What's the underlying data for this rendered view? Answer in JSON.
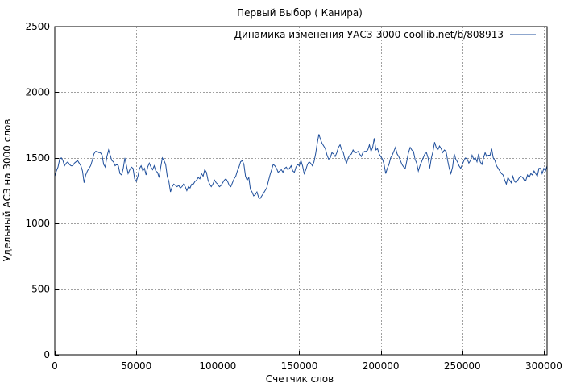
{
  "chart_data": {
    "type": "line",
    "title": "Первый Выбор ( Канира)",
    "xlabel": "Счетчик слов",
    "ylabel": "Удельный АСЗ на 3000 слов",
    "xlim": [
      0,
      302000
    ],
    "ylim": [
      0,
      2500
    ],
    "x_ticks": [
      0,
      50000,
      100000,
      150000,
      200000,
      250000,
      300000
    ],
    "y_ticks": [
      0,
      500,
      1000,
      1500,
      2000,
      2500
    ],
    "grid": true,
    "legend": "top-right",
    "series": [
      {
        "name": "Динамика изменения УАСЗ-3000 coollib.net/b/808913",
        "color": "#1f4f9c",
        "points": [
          [
            0,
            1360
          ],
          [
            1000,
            1400
          ],
          [
            2000,
            1430
          ],
          [
            3000,
            1490
          ],
          [
            4000,
            1500
          ],
          [
            5000,
            1480
          ],
          [
            6000,
            1440
          ],
          [
            7000,
            1460
          ],
          [
            8000,
            1470
          ],
          [
            9000,
            1450
          ],
          [
            10000,
            1440
          ],
          [
            11000,
            1440
          ],
          [
            12000,
            1460
          ],
          [
            13000,
            1470
          ],
          [
            14000,
            1480
          ],
          [
            15000,
            1460
          ],
          [
            16000,
            1440
          ],
          [
            17000,
            1400
          ],
          [
            18000,
            1310
          ],
          [
            19000,
            1370
          ],
          [
            20000,
            1400
          ],
          [
            21000,
            1420
          ],
          [
            22000,
            1440
          ],
          [
            23000,
            1480
          ],
          [
            24000,
            1530
          ],
          [
            25000,
            1550
          ],
          [
            26000,
            1550
          ],
          [
            27000,
            1540
          ],
          [
            28000,
            1540
          ],
          [
            29000,
            1520
          ],
          [
            30000,
            1450
          ],
          [
            31000,
            1430
          ],
          [
            32000,
            1510
          ],
          [
            33000,
            1560
          ],
          [
            34000,
            1520
          ],
          [
            35000,
            1480
          ],
          [
            36000,
            1470
          ],
          [
            37000,
            1440
          ],
          [
            38000,
            1450
          ],
          [
            39000,
            1440
          ],
          [
            40000,
            1380
          ],
          [
            41000,
            1370
          ],
          [
            42000,
            1420
          ],
          [
            43000,
            1500
          ],
          [
            44000,
            1440
          ],
          [
            45000,
            1380
          ],
          [
            46000,
            1410
          ],
          [
            47000,
            1430
          ],
          [
            48000,
            1420
          ],
          [
            49000,
            1340
          ],
          [
            50000,
            1320
          ],
          [
            51000,
            1360
          ],
          [
            52000,
            1420
          ],
          [
            53000,
            1440
          ],
          [
            54000,
            1400
          ],
          [
            55000,
            1420
          ],
          [
            56000,
            1370
          ],
          [
            57000,
            1430
          ],
          [
            58000,
            1460
          ],
          [
            59000,
            1430
          ],
          [
            60000,
            1410
          ],
          [
            61000,
            1440
          ],
          [
            62000,
            1400
          ],
          [
            63000,
            1390
          ],
          [
            64000,
            1350
          ],
          [
            65000,
            1430
          ],
          [
            66000,
            1500
          ],
          [
            67000,
            1480
          ],
          [
            68000,
            1450
          ],
          [
            69000,
            1360
          ],
          [
            70000,
            1320
          ],
          [
            71000,
            1240
          ],
          [
            72000,
            1280
          ],
          [
            73000,
            1300
          ],
          [
            74000,
            1290
          ],
          [
            75000,
            1280
          ],
          [
            76000,
            1290
          ],
          [
            77000,
            1270
          ],
          [
            78000,
            1280
          ],
          [
            79000,
            1300
          ],
          [
            80000,
            1280
          ],
          [
            81000,
            1250
          ],
          [
            82000,
            1280
          ],
          [
            83000,
            1270
          ],
          [
            84000,
            1300
          ],
          [
            85000,
            1300
          ],
          [
            86000,
            1320
          ],
          [
            87000,
            1330
          ],
          [
            88000,
            1350
          ],
          [
            89000,
            1340
          ],
          [
            90000,
            1380
          ],
          [
            91000,
            1360
          ],
          [
            92000,
            1410
          ],
          [
            93000,
            1390
          ],
          [
            94000,
            1330
          ],
          [
            95000,
            1300
          ],
          [
            96000,
            1280
          ],
          [
            97000,
            1300
          ],
          [
            98000,
            1330
          ],
          [
            99000,
            1310
          ],
          [
            100000,
            1300
          ],
          [
            101000,
            1280
          ],
          [
            102000,
            1290
          ],
          [
            103000,
            1310
          ],
          [
            104000,
            1330
          ],
          [
            105000,
            1340
          ],
          [
            106000,
            1320
          ],
          [
            107000,
            1290
          ],
          [
            108000,
            1280
          ],
          [
            109000,
            1310
          ],
          [
            110000,
            1340
          ],
          [
            111000,
            1360
          ],
          [
            112000,
            1400
          ],
          [
            113000,
            1430
          ],
          [
            114000,
            1470
          ],
          [
            115000,
            1480
          ],
          [
            116000,
            1450
          ],
          [
            117000,
            1360
          ],
          [
            118000,
            1330
          ],
          [
            119000,
            1350
          ],
          [
            120000,
            1260
          ],
          [
            121000,
            1240
          ],
          [
            122000,
            1210
          ],
          [
            123000,
            1220
          ],
          [
            124000,
            1240
          ],
          [
            125000,
            1200
          ],
          [
            126000,
            1190
          ],
          [
            127000,
            1210
          ],
          [
            128000,
            1230
          ],
          [
            129000,
            1250
          ],
          [
            130000,
            1270
          ],
          [
            131000,
            1320
          ],
          [
            132000,
            1370
          ],
          [
            133000,
            1410
          ],
          [
            134000,
            1450
          ],
          [
            135000,
            1440
          ],
          [
            136000,
            1420
          ],
          [
            137000,
            1390
          ],
          [
            138000,
            1400
          ],
          [
            139000,
            1410
          ],
          [
            140000,
            1390
          ],
          [
            141000,
            1420
          ],
          [
            142000,
            1430
          ],
          [
            143000,
            1410
          ],
          [
            144000,
            1420
          ],
          [
            145000,
            1440
          ],
          [
            146000,
            1400
          ],
          [
            147000,
            1390
          ],
          [
            148000,
            1430
          ],
          [
            149000,
            1450
          ],
          [
            150000,
            1440
          ],
          [
            151000,
            1480
          ],
          [
            152000,
            1440
          ],
          [
            153000,
            1380
          ],
          [
            154000,
            1410
          ],
          [
            155000,
            1450
          ],
          [
            156000,
            1470
          ],
          [
            157000,
            1460
          ],
          [
            158000,
            1440
          ],
          [
            159000,
            1470
          ],
          [
            160000,
            1530
          ],
          [
            161000,
            1610
          ],
          [
            162000,
            1680
          ],
          [
            163000,
            1640
          ],
          [
            164000,
            1610
          ],
          [
            165000,
            1590
          ],
          [
            166000,
            1570
          ],
          [
            167000,
            1520
          ],
          [
            168000,
            1490
          ],
          [
            169000,
            1500
          ],
          [
            170000,
            1540
          ],
          [
            171000,
            1530
          ],
          [
            172000,
            1510
          ],
          [
            173000,
            1540
          ],
          [
            174000,
            1580
          ],
          [
            175000,
            1600
          ],
          [
            176000,
            1560
          ],
          [
            177000,
            1540
          ],
          [
            178000,
            1490
          ],
          [
            179000,
            1460
          ],
          [
            180000,
            1500
          ],
          [
            181000,
            1520
          ],
          [
            182000,
            1530
          ],
          [
            183000,
            1560
          ],
          [
            184000,
            1540
          ],
          [
            185000,
            1540
          ],
          [
            186000,
            1550
          ],
          [
            187000,
            1530
          ],
          [
            188000,
            1510
          ],
          [
            189000,
            1540
          ],
          [
            190000,
            1550
          ],
          [
            191000,
            1550
          ],
          [
            192000,
            1560
          ],
          [
            193000,
            1600
          ],
          [
            194000,
            1550
          ],
          [
            195000,
            1580
          ],
          [
            196000,
            1650
          ],
          [
            197000,
            1560
          ],
          [
            198000,
            1570
          ],
          [
            199000,
            1530
          ],
          [
            200000,
            1510
          ],
          [
            201000,
            1490
          ],
          [
            202000,
            1450
          ],
          [
            203000,
            1380
          ],
          [
            204000,
            1420
          ],
          [
            205000,
            1450
          ],
          [
            206000,
            1500
          ],
          [
            207000,
            1520
          ],
          [
            208000,
            1550
          ],
          [
            209000,
            1580
          ],
          [
            210000,
            1530
          ],
          [
            211000,
            1510
          ],
          [
            212000,
            1480
          ],
          [
            213000,
            1450
          ],
          [
            214000,
            1430
          ],
          [
            215000,
            1420
          ],
          [
            216000,
            1480
          ],
          [
            217000,
            1540
          ],
          [
            218000,
            1580
          ],
          [
            219000,
            1560
          ],
          [
            220000,
            1550
          ],
          [
            221000,
            1490
          ],
          [
            222000,
            1460
          ],
          [
            223000,
            1400
          ],
          [
            224000,
            1440
          ],
          [
            225000,
            1470
          ],
          [
            226000,
            1500
          ],
          [
            227000,
            1530
          ],
          [
            228000,
            1540
          ],
          [
            229000,
            1500
          ],
          [
            230000,
            1420
          ],
          [
            231000,
            1500
          ],
          [
            232000,
            1550
          ],
          [
            233000,
            1620
          ],
          [
            234000,
            1580
          ],
          [
            235000,
            1560
          ],
          [
            236000,
            1590
          ],
          [
            237000,
            1570
          ],
          [
            238000,
            1540
          ],
          [
            239000,
            1560
          ],
          [
            240000,
            1550
          ],
          [
            241000,
            1480
          ],
          [
            242000,
            1420
          ],
          [
            243000,
            1380
          ],
          [
            244000,
            1430
          ],
          [
            245000,
            1530
          ],
          [
            246000,
            1490
          ],
          [
            247000,
            1470
          ],
          [
            248000,
            1440
          ],
          [
            249000,
            1420
          ],
          [
            250000,
            1450
          ],
          [
            251000,
            1480
          ],
          [
            252000,
            1500
          ],
          [
            253000,
            1490
          ],
          [
            254000,
            1460
          ],
          [
            255000,
            1480
          ],
          [
            256000,
            1520
          ],
          [
            257000,
            1490
          ],
          [
            258000,
            1500
          ],
          [
            259000,
            1470
          ],
          [
            260000,
            1530
          ],
          [
            261000,
            1470
          ],
          [
            262000,
            1450
          ],
          [
            263000,
            1500
          ],
          [
            264000,
            1540
          ],
          [
            265000,
            1510
          ],
          [
            266000,
            1520
          ],
          [
            267000,
            1520
          ],
          [
            268000,
            1570
          ],
          [
            269000,
            1500
          ],
          [
            270000,
            1480
          ],
          [
            271000,
            1440
          ],
          [
            272000,
            1420
          ],
          [
            273000,
            1400
          ],
          [
            274000,
            1380
          ],
          [
            275000,
            1370
          ],
          [
            276000,
            1330
          ],
          [
            277000,
            1300
          ],
          [
            278000,
            1350
          ],
          [
            279000,
            1330
          ],
          [
            280000,
            1310
          ],
          [
            281000,
            1360
          ],
          [
            282000,
            1320
          ],
          [
            283000,
            1310
          ],
          [
            284000,
            1330
          ],
          [
            285000,
            1350
          ],
          [
            286000,
            1360
          ],
          [
            287000,
            1350
          ],
          [
            288000,
            1330
          ],
          [
            289000,
            1330
          ],
          [
            290000,
            1370
          ],
          [
            291000,
            1350
          ],
          [
            292000,
            1380
          ],
          [
            293000,
            1370
          ],
          [
            294000,
            1400
          ],
          [
            295000,
            1380
          ],
          [
            296000,
            1360
          ],
          [
            297000,
            1420
          ],
          [
            298000,
            1420
          ],
          [
            299000,
            1380
          ],
          [
            300000,
            1420
          ],
          [
            301000,
            1400
          ],
          [
            302000,
            1440
          ]
        ]
      }
    ]
  }
}
